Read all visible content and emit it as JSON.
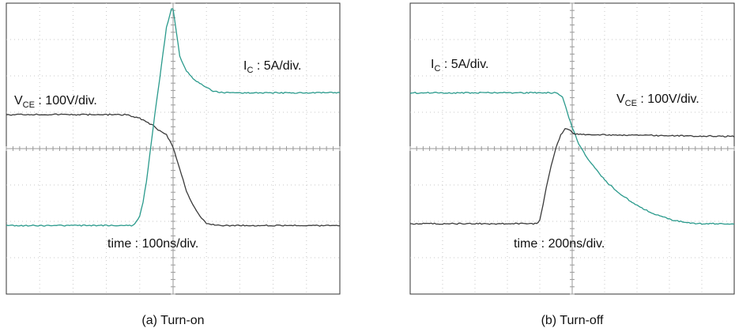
{
  "figure": {
    "background": "#ffffff"
  },
  "chart_data": [
    {
      "type": "line",
      "id": "turnon",
      "caption": "(a) Turn-on",
      "divisions": {
        "x": 10,
        "y": 8
      },
      "grid": true,
      "series": [
        {
          "key": "vce",
          "color": "#3a3a3a",
          "label": {
            "main": "V",
            "sub": "CE",
            "rest": " : 100V/div."
          },
          "x": [
            0,
            3.6,
            4.0,
            4.4,
            4.6,
            4.8,
            5.0,
            5.2,
            5.4,
            5.6,
            5.8,
            6.0,
            6.4,
            7.0,
            10
          ],
          "y": [
            3.0,
            3.0,
            2.9,
            2.7,
            2.55,
            2.45,
            2.1,
            1.5,
            0.9,
            0.5,
            0.2,
            0.0,
            -0.05,
            -0.05,
            -0.05
          ]
        },
        {
          "key": "ic",
          "color": "#2a9a8c",
          "label": {
            "main": "I",
            "sub": "C",
            "rest": " : 5A/div."
          },
          "x": [
            0,
            3.8,
            4.0,
            4.1,
            4.2,
            4.3,
            4.45,
            4.6,
            4.8,
            4.95,
            5.0,
            5.05,
            5.2,
            5.4,
            5.6,
            5.8,
            6.0,
            6.2,
            6.5,
            10
          ],
          "y": [
            -0.05,
            -0.05,
            0.2,
            0.6,
            1.15,
            1.9,
            3.0,
            4.0,
            5.4,
            5.9,
            5.9,
            5.6,
            4.6,
            4.2,
            4.0,
            3.85,
            3.75,
            3.65,
            3.6,
            3.6
          ]
        }
      ],
      "annotations": [
        {
          "key": "time",
          "text": "time : 100ns/div."
        }
      ]
    },
    {
      "type": "line",
      "id": "turnoff",
      "caption": "(b) Turn-off",
      "divisions": {
        "x": 10,
        "y": 8
      },
      "grid": true,
      "series": [
        {
          "key": "ic",
          "color": "#2a9a8c",
          "label": {
            "main": "I",
            "sub": "C",
            "rest": " : 5A/div."
          },
          "x": [
            0,
            4.5,
            4.7,
            4.8,
            4.9,
            5.0,
            5.2,
            5.5,
            6.0,
            6.5,
            7.0,
            7.5,
            8.0,
            8.5,
            9.0,
            9.5,
            10
          ],
          "y": [
            3.6,
            3.6,
            3.5,
            3.2,
            2.9,
            2.65,
            2.2,
            1.75,
            1.2,
            0.8,
            0.5,
            0.28,
            0.12,
            0.03,
            0.0,
            0.0,
            0.0
          ]
        },
        {
          "key": "vce",
          "color": "#3a3a3a",
          "label": {
            "main": "V",
            "sub": "CE",
            "rest": " : 100V/div."
          },
          "x": [
            0,
            3.9,
            4.0,
            4.1,
            4.2,
            4.35,
            4.5,
            4.65,
            4.78,
            4.9,
            5.0,
            5.2,
            5.5,
            10
          ],
          "y": [
            0.0,
            0.0,
            0.1,
            0.5,
            1.0,
            1.6,
            2.1,
            2.45,
            2.6,
            2.6,
            2.5,
            2.45,
            2.45,
            2.4
          ]
        }
      ],
      "annotations": [
        {
          "key": "time",
          "text": "time : 200ns/div."
        }
      ]
    }
  ]
}
